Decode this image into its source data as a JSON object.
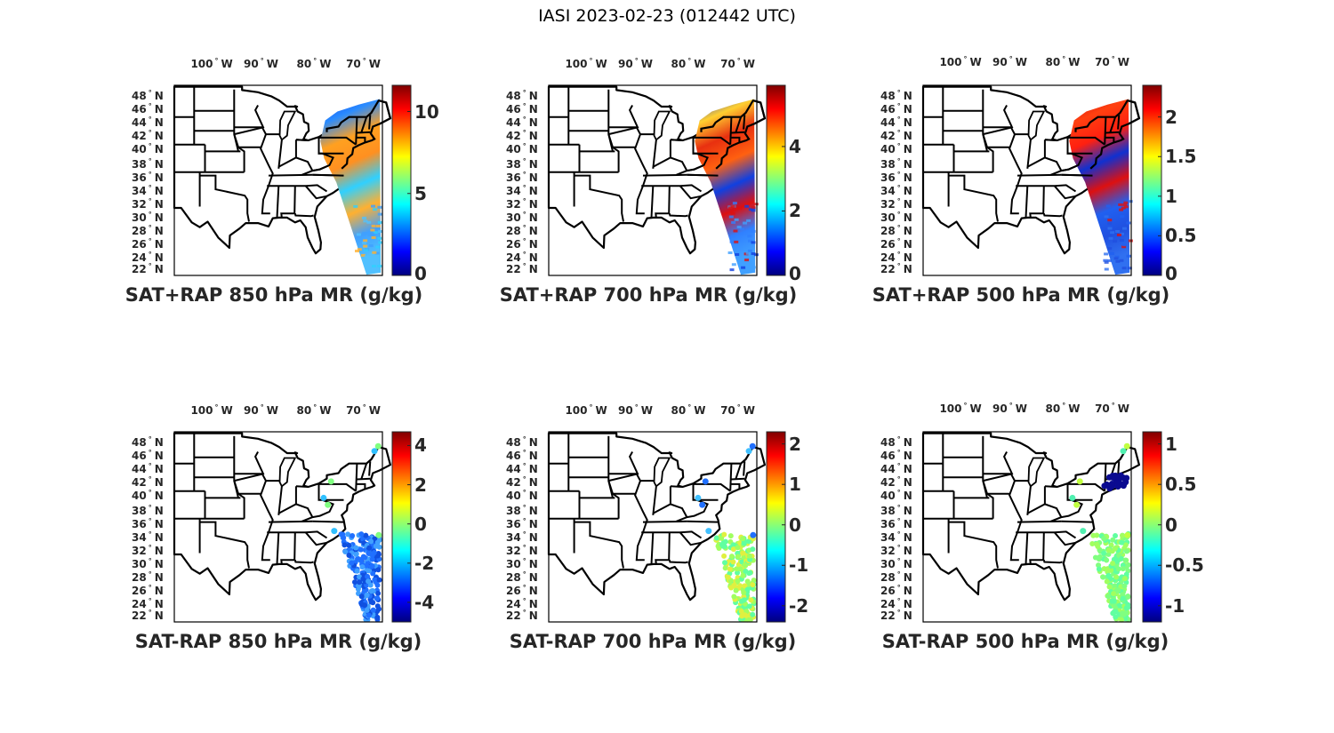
{
  "suptitle": "IASI 2023-02-23 (012442 UTC)",
  "lon_labels": [
    "100",
    "90",
    "80",
    "70"
  ],
  "lon_hemi": "W",
  "lat_labels": [
    "48",
    "46",
    "44",
    "42",
    "40",
    "38",
    "36",
    "34",
    "32",
    "30",
    "28",
    "26",
    "24",
    "22"
  ],
  "lat_hemi": "N",
  "panels": [
    {
      "title": "SAT+RAP 850 hPa MR (g/kg)",
      "clim": [
        0,
        11.6
      ],
      "ticks": [
        "0",
        "5",
        "10"
      ],
      "tick_values": [
        0,
        5,
        10
      ],
      "kind": "swath",
      "swath_colors": [
        "#1040f0",
        "#2a8cff",
        "#ffa020",
        "#ff9020",
        "#30d0ff",
        "#ffb030",
        "#40a0ff",
        "#50c0ff"
      ]
    },
    {
      "title": "SAT+RAP 700 hPa MR (g/kg)",
      "clim": [
        0,
        5.9
      ],
      "ticks": [
        "0",
        "2",
        "4"
      ],
      "tick_values": [
        0,
        2,
        4
      ],
      "kind": "swath",
      "swath_colors": [
        "#1030e0",
        "#ffd030",
        "#e83010",
        "#ff6010",
        "#1040e0",
        "#dd1010",
        "#3080ff",
        "#40a0ff"
      ]
    },
    {
      "title": "SAT+RAP 500 hPa MR (g/kg)",
      "clim": [
        0,
        2.4
      ],
      "ticks": [
        "0",
        "0.5",
        "1",
        "1.5",
        "2"
      ],
      "tick_values": [
        0,
        0.5,
        1,
        1.5,
        2
      ],
      "kind": "swath",
      "swath_colors": [
        "#d01010",
        "#ff4010",
        "#ff2010",
        "#1030d0",
        "#dd1010",
        "#2060f0",
        "#2050e0",
        "#3070f0"
      ]
    },
    {
      "title": "SAT-RAP 850 hPa MR (g/kg)",
      "clim": [
        -5,
        4.7
      ],
      "ticks": [
        "-4",
        "-2",
        "0",
        "2",
        "4"
      ],
      "tick_values": [
        -4,
        -2,
        0,
        2,
        4
      ],
      "kind": "dots",
      "dot_colors": [
        "#2070ff",
        "#1050e0",
        "#40a0ff",
        "#80ff80",
        "#30c0ff"
      ]
    },
    {
      "title": "SAT-RAP 700 hPa MR (g/kg)",
      "clim": [
        -2.4,
        2.3
      ],
      "ticks": [
        "-2",
        "-1",
        "0",
        "1",
        "2"
      ],
      "tick_values": [
        -2,
        -1,
        0,
        1,
        2
      ],
      "kind": "dots",
      "dot_colors": [
        "#a0ff60",
        "#e0f040",
        "#60ffa0",
        "#2070ff",
        "#40c0ff"
      ]
    },
    {
      "title": "SAT-RAP 500 hPa MR (g/kg)",
      "clim": [
        -1.2,
        1.15
      ],
      "ticks": [
        "-1",
        "-0.5",
        "0",
        "0.5",
        "1"
      ],
      "tick_values": [
        -1,
        -0.5,
        0,
        0.5,
        1
      ],
      "kind": "dots",
      "dot_colors": [
        "#80ff80",
        "#a0ff60",
        "#60ffa0",
        "#c0ff40",
        "#50f0b0"
      ]
    }
  ]
}
